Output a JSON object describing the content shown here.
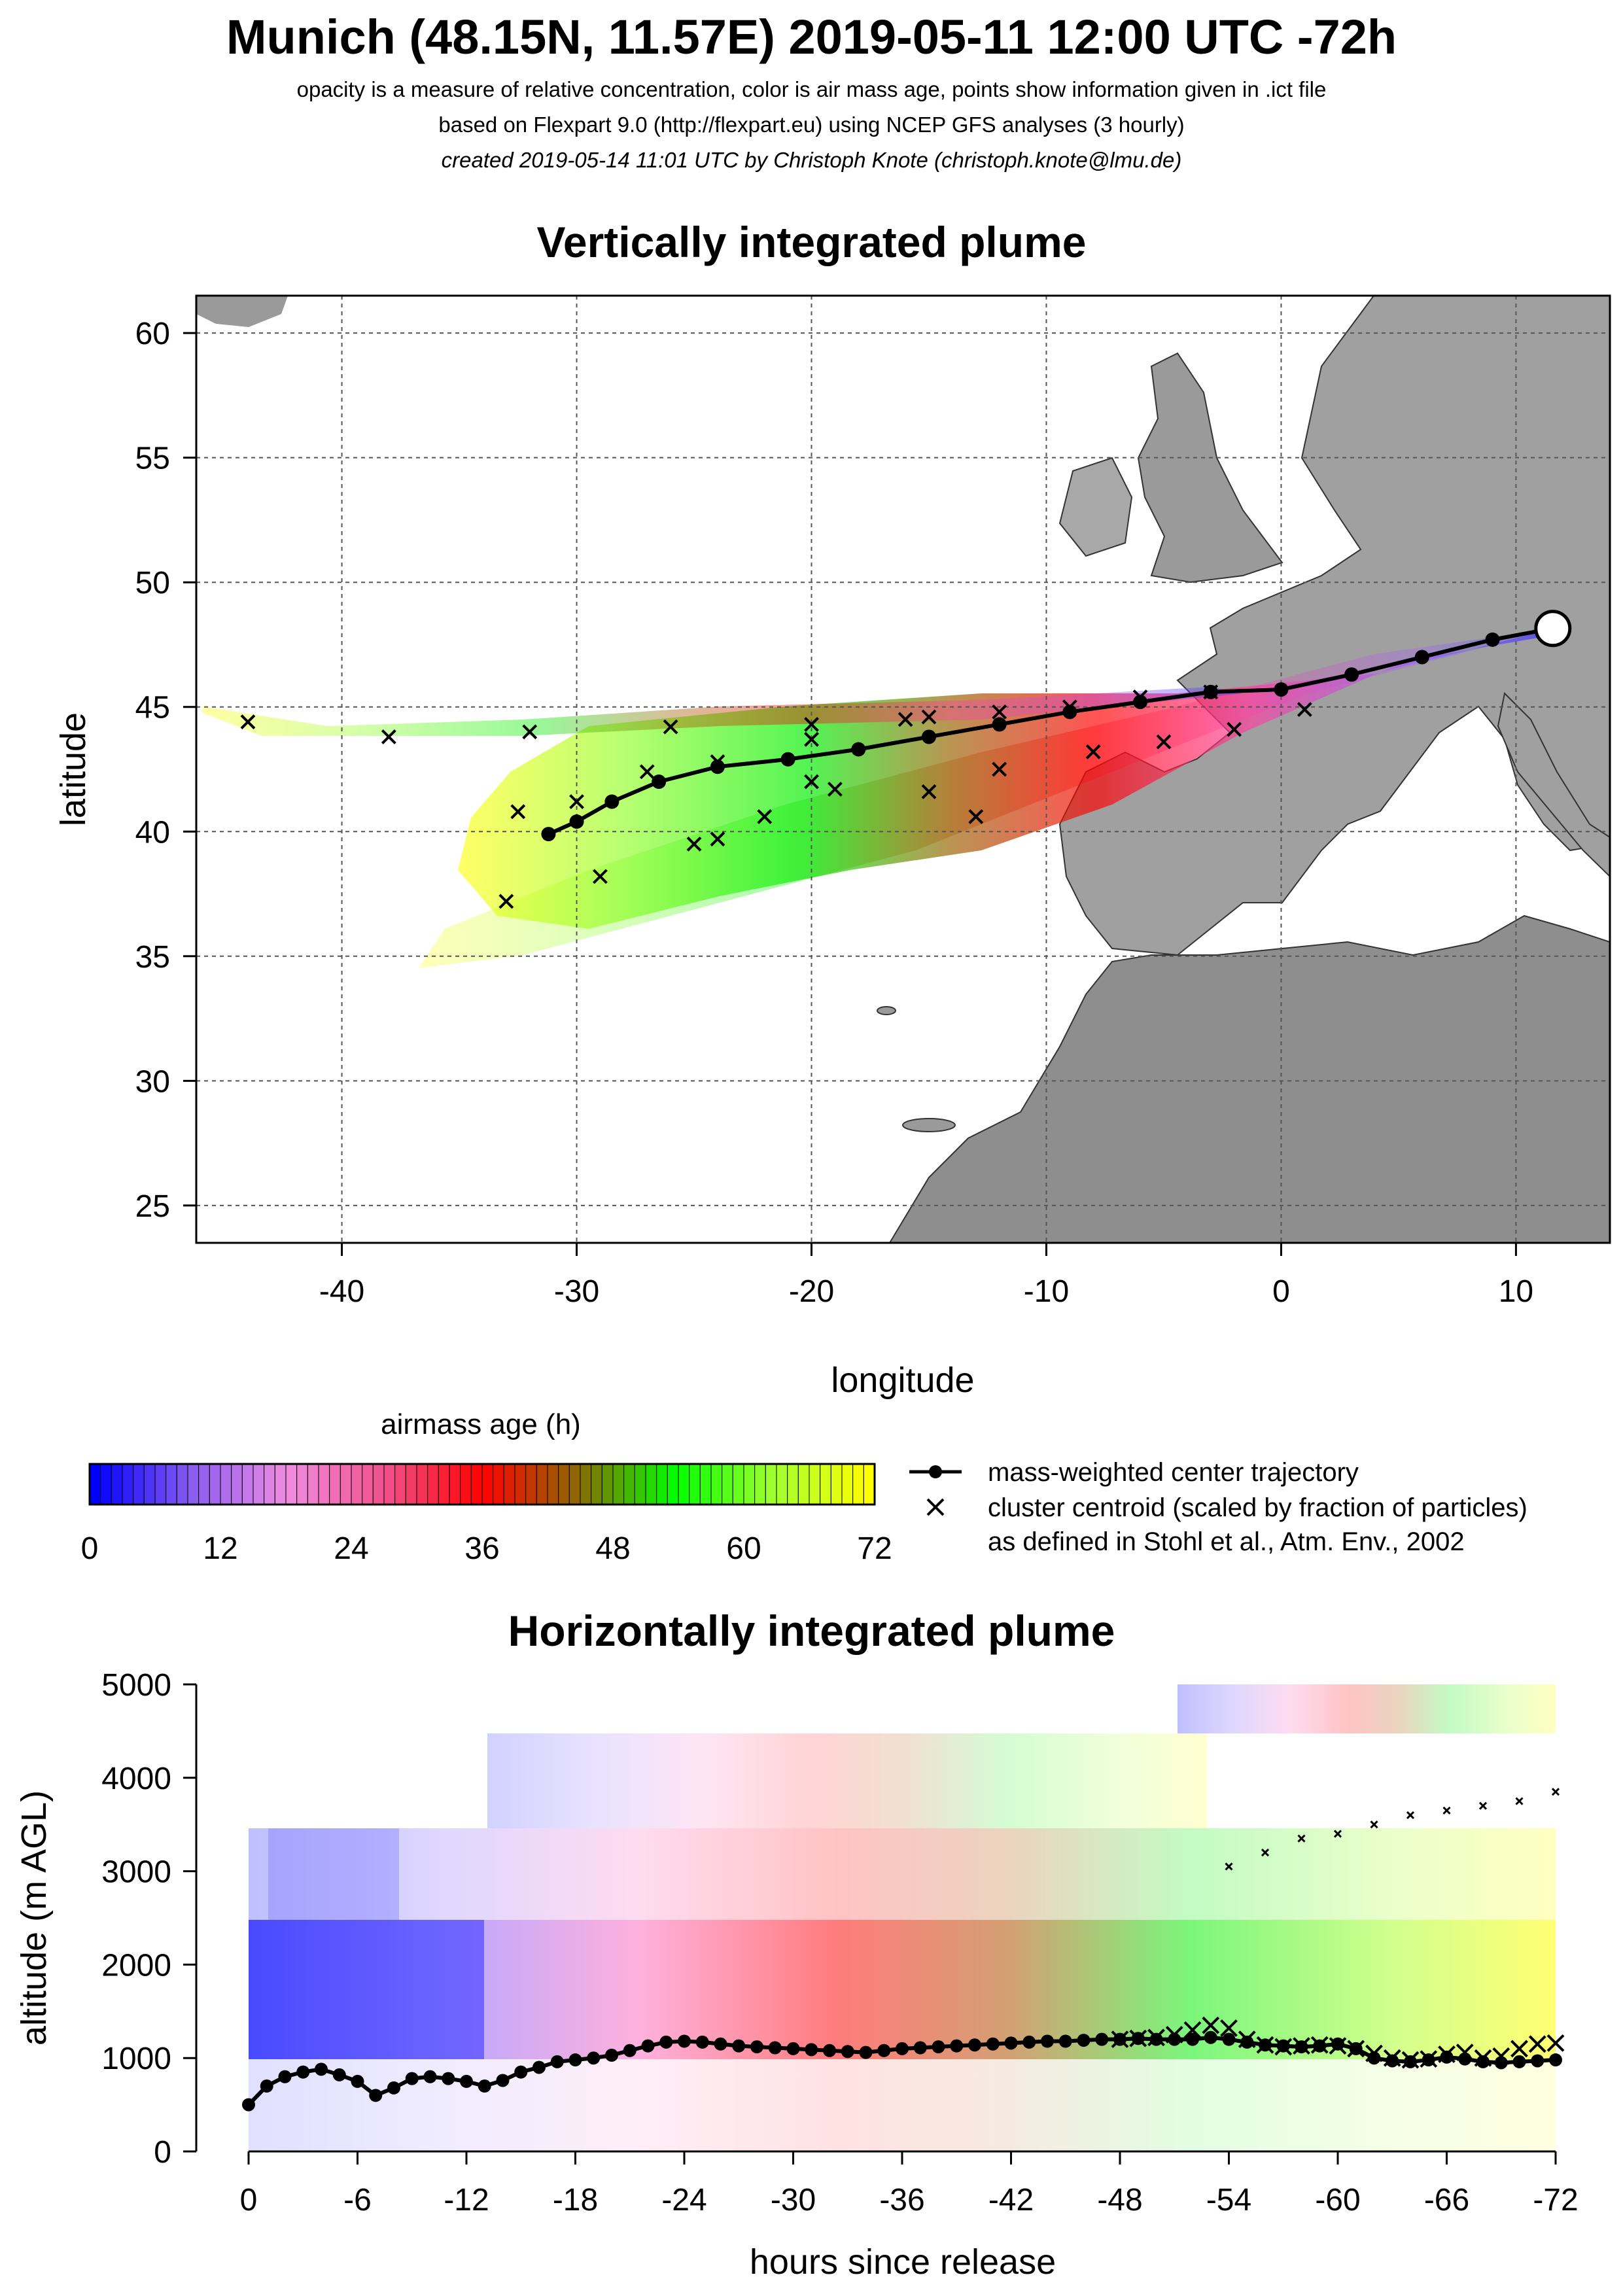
{
  "header": {
    "title": "Munich (48.15N, 11.57E) 2019-05-11 12:00 UTC -72h",
    "line1": "opacity is a measure of relative concentration, color is air mass age, points show information given in .ict file",
    "line2": "based on Flexpart 9.0 (http://flexpart.eu) using NCEP GFS analyses (3 hourly)",
    "line3": "created 2019-05-14 11:01 UTC by Christoph Knote (christoph.knote@lmu.de)"
  },
  "colors": {
    "age_scale": [
      "#0000ff",
      "#8a5cf0",
      "#f08ce0",
      "#f0508a",
      "#ff0000",
      "#8a6a00",
      "#00ff00",
      "#a0ff30",
      "#ffff00"
    ],
    "land": "#9a9a9a",
    "marker": "#000000"
  },
  "legend": {
    "colorbar_title": "airmass age (h)",
    "colorbar_ticks": [
      "0",
      "12",
      "24",
      "36",
      "48",
      "60",
      "72"
    ],
    "line_label": "mass-weighted center trajectory",
    "cross_label_1": "cluster centroid (scaled by fraction of particles)",
    "cross_label_2": "as defined in Stohl et al., Atm. Env., 2002"
  },
  "chart_data": [
    {
      "type": "scatter",
      "title": "Vertically integrated plume",
      "xlabel": "longitude",
      "ylabel": "latitude",
      "xlim": [
        -46.2,
        14
      ],
      "ylim": [
        23.5,
        61.5
      ],
      "xticks": [
        -40,
        -30,
        -20,
        -10,
        0,
        10
      ],
      "yticks": [
        25,
        30,
        35,
        40,
        45,
        50,
        55,
        60
      ],
      "grid": true,
      "release_point": {
        "lon": 11.57,
        "lat": 48.15
      },
      "series": [
        {
          "name": "mass-weighted center trajectory",
          "points": [
            [
              11.57,
              48.15
            ],
            [
              9,
              47.7
            ],
            [
              6,
              47
            ],
            [
              3,
              46.3
            ],
            [
              0,
              45.7
            ],
            [
              -3,
              45.6
            ],
            [
              -6,
              45.2
            ],
            [
              -9,
              44.8
            ],
            [
              -12,
              44.3
            ],
            [
              -15,
              43.8
            ],
            [
              -18,
              43.3
            ],
            [
              -21,
              42.9
            ],
            [
              -24,
              42.6
            ],
            [
              -26.5,
              42
            ],
            [
              -28.5,
              41.2
            ],
            [
              -30,
              40.4
            ],
            [
              -31.2,
              39.9
            ]
          ]
        },
        {
          "name": "cluster centroid (scaled by fraction of particles)",
          "points": [
            [
              -44,
              44.4
            ],
            [
              -38,
              43.8
            ],
            [
              -32,
              44
            ],
            [
              -26,
              44.2
            ],
            [
              -20,
              44.3
            ],
            [
              -15,
              44.6
            ],
            [
              -12,
              44.8
            ],
            [
              -9,
              45
            ],
            [
              -6,
              45.4
            ],
            [
              -3,
              45.6
            ],
            [
              -16,
              44.5
            ],
            [
              -20,
              43.7
            ],
            [
              -24,
              42.8
            ],
            [
              -27,
              42.4
            ],
            [
              -30,
              41.2
            ],
            [
              -32.5,
              40.8
            ],
            [
              -33,
              37.2
            ],
            [
              -29,
              38.2
            ],
            [
              -25,
              39.5
            ],
            [
              -22,
              40.6
            ],
            [
              -19,
              41.7
            ],
            [
              -15,
              41.6
            ],
            [
              -12,
              42.5
            ],
            [
              -8,
              43.2
            ],
            [
              -5,
              43.6
            ],
            [
              -2,
              44.1
            ],
            [
              1,
              44.9
            ],
            [
              -13,
              40.6
            ],
            [
              -24,
              39.7
            ],
            [
              -20,
              42
            ]
          ]
        }
      ]
    },
    {
      "type": "scatter",
      "title": "Horizontally integrated plume",
      "xlabel": "hours since release",
      "ylabel": "altitude (m AGL)",
      "xlim": [
        0,
        -72
      ],
      "ylim": [
        0,
        5000
      ],
      "xticks": [
        "0",
        "-6",
        "-12",
        "-18",
        "-24",
        "-30",
        "-36",
        "-42",
        "-48",
        "-54",
        "-60",
        "-66",
        "-72"
      ],
      "yticks": [
        "0",
        "1000",
        "2000",
        "3000",
        "4000",
        "5000"
      ],
      "grid": false,
      "series": [
        {
          "name": "mass-weighted center trajectory",
          "x": [
            0,
            -1,
            -2,
            -3,
            -4,
            -5,
            -6,
            -7,
            -8,
            -9,
            -10,
            -11,
            -12,
            -13,
            -14,
            -15,
            -16,
            -17,
            -18,
            -19,
            -20,
            -21,
            -22,
            -23,
            -24,
            -25,
            -26,
            -27,
            -28,
            -29,
            -30,
            -31,
            -32,
            -33,
            -34,
            -35,
            -36,
            -37,
            -38,
            -39,
            -40,
            -41,
            -42,
            -43,
            -44,
            -45,
            -46,
            -47,
            -48,
            -49,
            -50,
            -51,
            -52,
            -53,
            -54,
            -55,
            -56,
            -57,
            -58,
            -59,
            -60,
            -61,
            -62,
            -63,
            -64,
            -65,
            -66,
            -67,
            -68,
            -69,
            -70,
            -71,
            -72
          ],
          "y": [
            500,
            700,
            800,
            850,
            880,
            820,
            750,
            600,
            680,
            780,
            800,
            780,
            750,
            700,
            760,
            850,
            900,
            960,
            980,
            1000,
            1030,
            1080,
            1130,
            1170,
            1180,
            1170,
            1150,
            1130,
            1120,
            1110,
            1100,
            1090,
            1080,
            1070,
            1060,
            1080,
            1100,
            1110,
            1120,
            1130,
            1140,
            1150,
            1160,
            1170,
            1180,
            1180,
            1190,
            1200,
            1200,
            1210,
            1200,
            1200,
            1200,
            1220,
            1200,
            1170,
            1140,
            1130,
            1120,
            1130,
            1150,
            1100,
            1000,
            970,
            960,
            980,
            1010,
            990,
            960,
            950,
            960,
            970,
            980
          ]
        },
        {
          "name": "cluster centroid (scaled by fraction of particles)",
          "x": [
            -48,
            -49,
            -50,
            -51,
            -52,
            -53,
            -54,
            -55,
            -56,
            -57,
            -58,
            -59,
            -60,
            -61,
            -62,
            -63,
            -64,
            -65,
            -66,
            -67,
            -68,
            -69,
            -70,
            -71,
            -72,
            -54,
            -56,
            -58,
            -60,
            -62,
            -64,
            -66,
            -68,
            -70,
            -72
          ],
          "y": [
            1200,
            1210,
            1220,
            1250,
            1300,
            1350,
            1320,
            1200,
            1140,
            1120,
            1130,
            1140,
            1130,
            1100,
            1050,
            1000,
            980,
            990,
            1040,
            1060,
            1000,
            1020,
            1100,
            1150,
            1160,
            3050,
            3200,
            3350,
            3400,
            3500,
            3600,
            3650,
            3700,
            3750,
            3850
          ]
        }
      ]
    }
  ]
}
